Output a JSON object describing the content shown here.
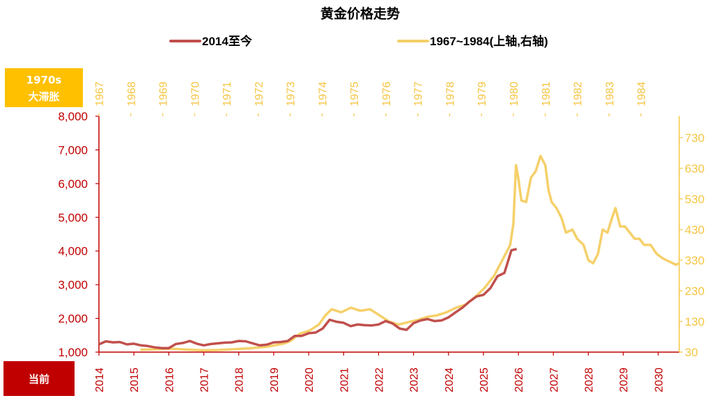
{
  "chart_data": {
    "type": "line",
    "title": "黄金价格走势",
    "legend": {
      "placement": "top",
      "entries": [
        {
          "label": "2014至今",
          "color": "#c0504d"
        },
        {
          "label": "1967~1984(上轴,右轴)",
          "color": "#f5d06a"
        }
      ]
    },
    "badge_top": {
      "line1": "1970s",
      "line2": "大滞胀",
      "color": "#ffc000"
    },
    "badge_bottom": {
      "label": "当前",
      "color": "#c00000"
    },
    "colors": {
      "left_axis": "#c00000",
      "right_axis": "#f5c542",
      "series_current": "#c0504d",
      "series_1970s": "#f5d06a"
    },
    "y_left": {
      "ylim": [
        1000,
        8000
      ],
      "ticks": [
        "1,000",
        "2,000",
        "3,000",
        "4,000",
        "5,000",
        "6,000",
        "7,000",
        "8,000"
      ],
      "tick_values": [
        1000,
        2000,
        3000,
        4000,
        5000,
        6000,
        7000,
        8000
      ]
    },
    "y_right": {
      "ylim": [
        30,
        800
      ],
      "ticks": [
        "30",
        "130",
        "230",
        "330",
        "430",
        "530",
        "630",
        "730"
      ],
      "tick_values": [
        30,
        130,
        230,
        330,
        430,
        530,
        630,
        730
      ]
    },
    "x_bottom": {
      "xlim": [
        2014,
        2030.6
      ],
      "ticks": [
        "2014",
        "2015",
        "2016",
        "2017",
        "2018",
        "2019",
        "2020",
        "2021",
        "2022",
        "2023",
        "2024",
        "2025",
        "2026",
        "2027",
        "2028",
        "2029",
        "2030"
      ]
    },
    "x_top": {
      "xlim": [
        1967,
        1985.2
      ],
      "ticks": [
        "1967",
        "1968",
        "1969",
        "1970",
        "1971",
        "1972",
        "1973",
        "1974",
        "1975",
        "1976",
        "1977",
        "1978",
        "1979",
        "1980",
        "1981",
        "1982",
        "1983",
        "1984"
      ]
    },
    "series": [
      {
        "name": "2014至今",
        "axis": "bottom-left",
        "x": [
          2014.0,
          2014.2,
          2014.4,
          2014.6,
          2014.8,
          2015.0,
          2015.2,
          2015.4,
          2015.6,
          2015.8,
          2016.0,
          2016.2,
          2016.4,
          2016.6,
          2016.8,
          2017.0,
          2017.2,
          2017.4,
          2017.6,
          2017.8,
          2018.0,
          2018.2,
          2018.4,
          2018.6,
          2018.8,
          2019.0,
          2019.2,
          2019.4,
          2019.6,
          2019.8,
          2020.0,
          2020.2,
          2020.4,
          2020.6,
          2020.8,
          2021.0,
          2021.2,
          2021.4,
          2021.6,
          2021.8,
          2022.0,
          2022.2,
          2022.4,
          2022.6,
          2022.8,
          2023.0,
          2023.2,
          2023.4,
          2023.6,
          2023.8,
          2024.0,
          2024.2,
          2024.4,
          2024.6,
          2024.8,
          2025.0,
          2025.2,
          2025.4,
          2025.6,
          2025.8,
          2025.95
        ],
        "y": [
          1230,
          1320,
          1290,
          1300,
          1230,
          1250,
          1200,
          1180,
          1140,
          1120,
          1120,
          1240,
          1270,
          1330,
          1250,
          1200,
          1240,
          1260,
          1280,
          1290,
          1330,
          1320,
          1260,
          1200,
          1220,
          1290,
          1300,
          1330,
          1480,
          1480,
          1560,
          1580,
          1700,
          1960,
          1900,
          1870,
          1770,
          1820,
          1800,
          1790,
          1820,
          1920,
          1850,
          1700,
          1660,
          1860,
          1940,
          1980,
          1920,
          1940,
          2030,
          2180,
          2320,
          2500,
          2650,
          2700,
          2900,
          3250,
          3350,
          4020,
          4060
        ]
      },
      {
        "name": "1967~1984(上轴,右轴)",
        "axis": "top-right",
        "x": [
          1968.3,
          1968.8,
          1969.3,
          1969.8,
          1970.3,
          1970.8,
          1971.3,
          1971.8,
          1972.3,
          1972.8,
          1973.0,
          1973.3,
          1973.6,
          1973.9,
          1974.1,
          1974.3,
          1974.6,
          1974.9,
          1975.2,
          1975.5,
          1975.8,
          1976.1,
          1976.4,
          1976.7,
          1977.0,
          1977.3,
          1977.6,
          1977.9,
          1978.2,
          1978.5,
          1978.8,
          1979.1,
          1979.4,
          1979.7,
          1979.9,
          1980.0,
          1980.08,
          1980.15,
          1980.25,
          1980.4,
          1980.55,
          1980.7,
          1980.85,
          1981.0,
          1981.1,
          1981.2,
          1981.35,
          1981.5,
          1981.65,
          1981.85,
          1982.0,
          1982.2,
          1982.35,
          1982.5,
          1982.65,
          1982.8,
          1982.95,
          1983.1,
          1983.2,
          1983.35,
          1983.5,
          1983.65,
          1983.8,
          1983.95,
          1984.1,
          1984.3,
          1984.5,
          1984.7,
          1984.9,
          1985.1,
          1985.2
        ],
        "y": [
          38,
          39,
          41,
          38,
          36,
          37,
          40,
          43,
          48,
          58,
          66,
          90,
          100,
          120,
          150,
          170,
          160,
          175,
          165,
          170,
          150,
          130,
          120,
          128,
          135,
          145,
          150,
          160,
          175,
          185,
          210,
          240,
          280,
          340,
          380,
          450,
          640,
          600,
          525,
          520,
          600,
          620,
          670,
          640,
          560,
          520,
          500,
          470,
          420,
          430,
          400,
          380,
          330,
          320,
          350,
          430,
          420,
          470,
          500,
          440,
          440,
          420,
          400,
          400,
          380,
          380,
          350,
          335,
          325,
          315,
          320
        ]
      }
    ]
  }
}
